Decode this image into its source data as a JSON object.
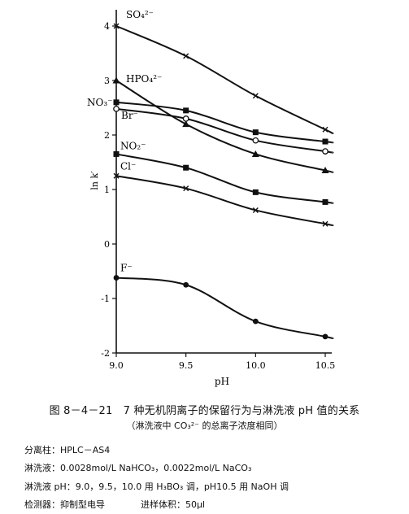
{
  "chart_data": {
    "type": "line",
    "xlabel": "pH",
    "ylabel": "ln k′",
    "xlim": [
      9.0,
      10.5
    ],
    "ylim": [
      -2,
      4
    ],
    "x": [
      9.0,
      9.5,
      10.0,
      10.5
    ],
    "xticks": [
      "9.0",
      "9.5",
      "10.0",
      "10.5"
    ],
    "yticks": [
      "-2",
      "-1",
      "0",
      "1",
      "2",
      "3",
      "4"
    ],
    "grid": false,
    "series": [
      {
        "name": "SO₄²⁻",
        "marker": "x",
        "values": [
          4.0,
          3.45,
          2.72,
          2.1
        ]
      },
      {
        "name": "HPO₄²⁻",
        "marker": "filled-triangle",
        "values": [
          3.0,
          2.2,
          1.65,
          1.35
        ]
      },
      {
        "name": "NO₃⁻",
        "marker": "filled-square",
        "values": [
          2.6,
          2.45,
          2.05,
          1.88
        ]
      },
      {
        "name": "Br⁻",
        "marker": "open-circle",
        "values": [
          2.48,
          2.3,
          1.9,
          1.7
        ]
      },
      {
        "name": "NO₂⁻",
        "marker": "filled-square",
        "values": [
          1.65,
          1.4,
          0.95,
          0.77
        ]
      },
      {
        "name": "Cl⁻",
        "marker": "x",
        "values": [
          1.25,
          1.02,
          0.62,
          0.37
        ]
      },
      {
        "name": "F⁻",
        "marker": "filled-circle",
        "values": [
          -0.62,
          -0.75,
          -1.42,
          -1.7
        ]
      }
    ]
  },
  "caption": {
    "title": "图 8－4－21　7 种无机阴离子的保留行为与淋洗液 pH 值的关系",
    "note": "（淋洗液中 CO₃²⁻ 的总离子浓度相同）"
  },
  "conditions": {
    "column": "分离柱：HPLC－AS4",
    "eluent": "淋洗液：0.0028mol/L NaHCO₃，0.0022mol/L NaCO₃",
    "ph": "淋洗液 pH：9.0，9.5，10.0 用 H₃BO₃ 调，pH10.5 用 NaOH 调",
    "detector": "检测器：抑制型电导",
    "volume": "进样体积：50μl"
  }
}
